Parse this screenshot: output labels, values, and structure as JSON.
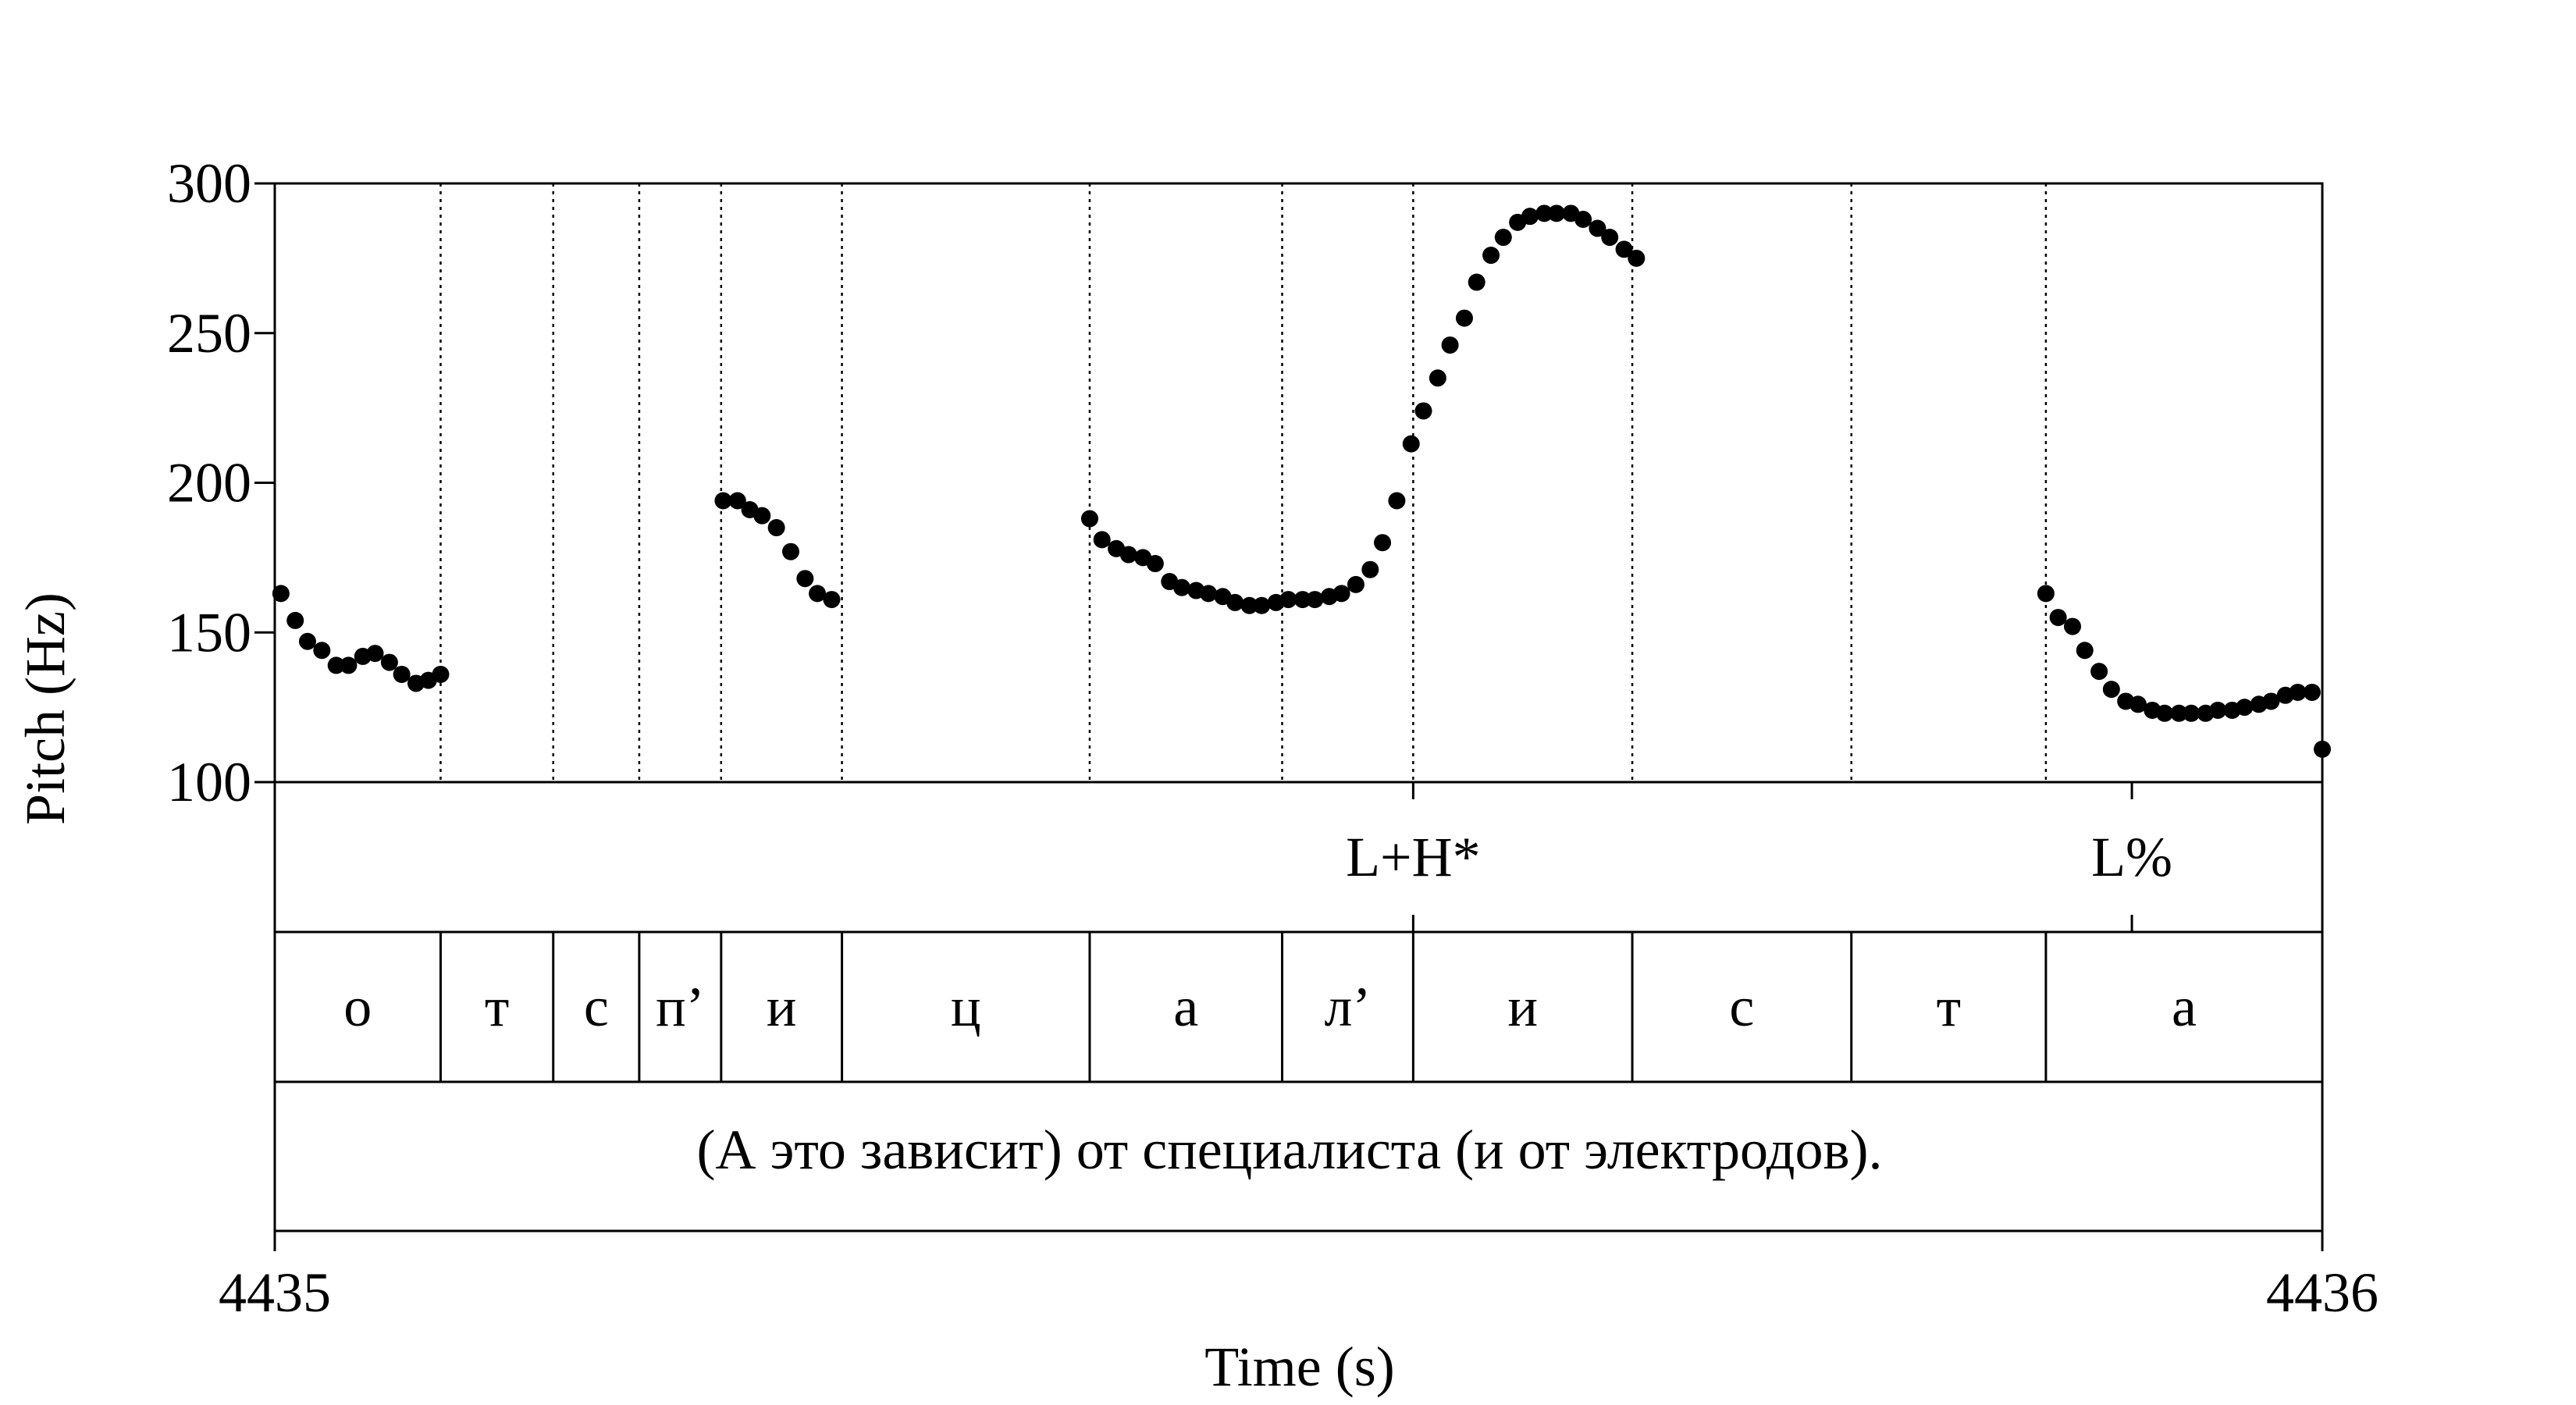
{
  "chart_data": {
    "type": "scatter",
    "ylabel": "Pitch (Hz)",
    "xlabel": "Time (s)",
    "xlim": [
      4435,
      4436
    ],
    "ylim": [
      100,
      300
    ],
    "x_tick_labels": [
      "4435",
      "4436"
    ],
    "y_ticks": [
      100,
      150,
      200,
      250,
      300
    ],
    "y_tick_labels": [
      "100",
      "150",
      "200",
      "250",
      "300"
    ],
    "marker_color": "#000000",
    "segments": [
      {
        "label": "о",
        "start": 4435.0,
        "end": 4435.081
      },
      {
        "label": "т",
        "start": 4435.081,
        "end": 4435.136
      },
      {
        "label": "с",
        "start": 4435.136,
        "end": 4435.178
      },
      {
        "label": "п’",
        "start": 4435.178,
        "end": 4435.218
      },
      {
        "label": "и",
        "start": 4435.218,
        "end": 4435.277
      },
      {
        "label": "ц",
        "start": 4435.277,
        "end": 4435.398
      },
      {
        "label": "а",
        "start": 4435.398,
        "end": 4435.492
      },
      {
        "label": "л’",
        "start": 4435.492,
        "end": 4435.556
      },
      {
        "label": "и",
        "start": 4435.556,
        "end": 4435.663
      },
      {
        "label": "с",
        "start": 4435.663,
        "end": 4435.77
      },
      {
        "label": "т",
        "start": 4435.77,
        "end": 4435.865
      },
      {
        "label": "а",
        "start": 4435.865,
        "end": 4436.0
      }
    ],
    "tones": [
      {
        "label": "L+H*",
        "time": 4435.556
      },
      {
        "label": "L%",
        "time": 4435.907
      }
    ],
    "sentence": "(А это зависит) от специалиста (и от электродов).",
    "series": [
      {
        "values": [
          [
            4435.003,
            163
          ],
          [
            4435.01,
            154
          ],
          [
            4435.016,
            147
          ],
          [
            4435.023,
            144
          ],
          [
            4435.03,
            139
          ],
          [
            4435.036,
            139
          ],
          [
            4435.043,
            142
          ],
          [
            4435.049,
            143
          ],
          [
            4435.056,
            140
          ],
          [
            4435.062,
            136
          ],
          [
            4435.069,
            133
          ],
          [
            4435.075,
            134
          ],
          [
            4435.081,
            136
          ],
          [
            4435.219,
            194
          ],
          [
            4435.226,
            194
          ],
          [
            4435.232,
            191
          ],
          [
            4435.238,
            189
          ],
          [
            4435.245,
            185
          ],
          [
            4435.252,
            177
          ],
          [
            4435.259,
            168
          ],
          [
            4435.265,
            163
          ],
          [
            4435.272,
            161
          ],
          [
            4435.398,
            188
          ],
          [
            4435.404,
            181
          ],
          [
            4435.411,
            178
          ],
          [
            4435.417,
            176
          ],
          [
            4435.424,
            175
          ],
          [
            4435.43,
            173
          ],
          [
            4435.437,
            167
          ],
          [
            4435.443,
            165
          ],
          [
            4435.45,
            164
          ],
          [
            4435.456,
            163
          ],
          [
            4435.463,
            162
          ],
          [
            4435.469,
            160
          ],
          [
            4435.476,
            159
          ],
          [
            4435.482,
            159
          ],
          [
            4435.489,
            160
          ],
          [
            4435.495,
            161
          ],
          [
            4435.502,
            161
          ],
          [
            4435.508,
            161
          ],
          [
            4435.515,
            162
          ],
          [
            4435.521,
            163
          ],
          [
            4435.528,
            166
          ],
          [
            4435.535,
            171
          ],
          [
            4435.541,
            180
          ],
          [
            4435.548,
            194
          ],
          [
            4435.555,
            213
          ],
          [
            4435.561,
            224
          ],
          [
            4435.568,
            235
          ],
          [
            4435.574,
            246
          ],
          [
            4435.581,
            255
          ],
          [
            4435.587,
            267
          ],
          [
            4435.594,
            276
          ],
          [
            4435.6,
            282
          ],
          [
            4435.607,
            287
          ],
          [
            4435.613,
            289
          ],
          [
            4435.62,
            290
          ],
          [
            4435.626,
            290
          ],
          [
            4435.633,
            290
          ],
          [
            4435.639,
            288
          ],
          [
            4435.646,
            285
          ],
          [
            4435.652,
            282
          ],
          [
            4435.659,
            278
          ],
          [
            4435.665,
            275
          ],
          [
            4435.865,
            163
          ],
          [
            4435.871,
            155
          ],
          [
            4435.878,
            152
          ],
          [
            4435.884,
            144
          ],
          [
            4435.891,
            137
          ],
          [
            4435.897,
            131
          ],
          [
            4435.904,
            127
          ],
          [
            4435.91,
            126
          ],
          [
            4435.917,
            124
          ],
          [
            4435.923,
            123
          ],
          [
            4435.93,
            123
          ],
          [
            4435.936,
            123
          ],
          [
            4435.943,
            123
          ],
          [
            4435.949,
            124
          ],
          [
            4435.956,
            124
          ],
          [
            4435.962,
            125
          ],
          [
            4435.969,
            126
          ],
          [
            4435.975,
            127
          ],
          [
            4435.982,
            129
          ],
          [
            4435.988,
            130
          ],
          [
            4435.995,
            130
          ],
          [
            4436.0,
            111
          ]
        ]
      }
    ]
  }
}
